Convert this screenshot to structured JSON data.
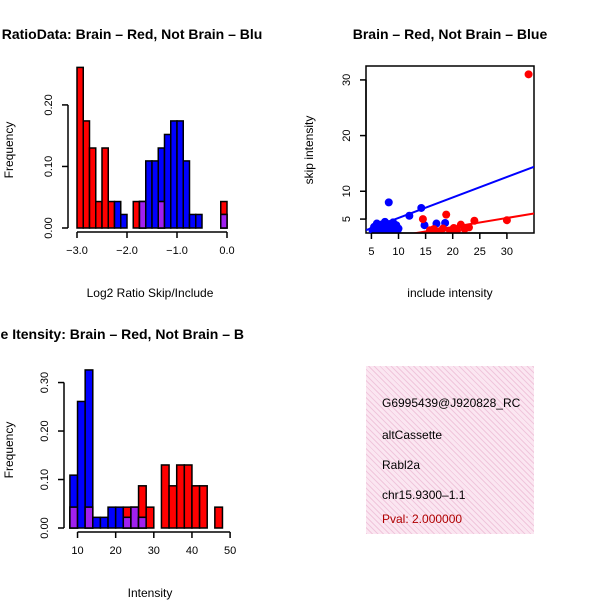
{
  "colors": {
    "brain": "#ff0000",
    "not_brain": "#0000ff",
    "overlap": "#a020f0",
    "pval": "#b00000"
  },
  "chart_data": [
    {
      "type": "bar",
      "kind": "overlaid-histogram",
      "title": "RatioData: Brain – Red, Not Brain – Blu",
      "xlabel": "Log2 Ratio Skip/Include",
      "ylabel": "Frequency",
      "xlim": [
        -3.1,
        0.1
      ],
      "ylim": [
        0,
        0.26
      ],
      "xticks": [
        -3.0,
        -2.0,
        -1.0,
        0.0
      ],
      "xtick_labels": [
        "−3.0",
        "−2.0",
        "−1.0",
        "0.0"
      ],
      "yticks": [
        0.0,
        0.1,
        0.2
      ],
      "ytick_labels": [
        "0.00",
        "0.10",
        "0.20"
      ],
      "bin_edges": [
        -3.0,
        -2.875,
        -2.75,
        -2.625,
        -2.5,
        -2.375,
        -2.25,
        -2.125,
        -2.0,
        -1.875,
        -1.75,
        -1.625,
        -1.5,
        -1.375,
        -1.25,
        -1.125,
        -1.0,
        -0.875,
        -0.75,
        -0.625,
        -0.5,
        -0.375,
        -0.25,
        -0.125,
        0.0
      ],
      "series": [
        {
          "name": "Brain",
          "color": "red",
          "values": [
            0.261,
            0.174,
            0.13,
            0.043,
            0.13,
            0.043,
            0.0,
            0.0,
            0.0,
            0.043,
            0.043,
            0.0,
            0.0,
            0.043,
            0.0,
            0.0,
            0.0,
            0.0,
            0.0,
            0.0,
            0.0,
            0.0,
            0.0,
            0.043
          ]
        },
        {
          "name": "Not Brain",
          "color": "blue",
          "values": [
            0.0,
            0.0,
            0.0,
            0.0,
            0.0,
            0.0,
            0.043,
            0.022,
            0.0,
            0.0,
            0.043,
            0.109,
            0.109,
            0.13,
            0.152,
            0.174,
            0.174,
            0.109,
            0.022,
            0.022,
            0.0,
            0.0,
            0.0,
            0.022
          ]
        }
      ]
    },
    {
      "type": "scatter",
      "title": "Brain – Red, Not Brain – Blue",
      "xlabel": "include intensity",
      "ylabel": "skip intensity",
      "xlim": [
        4,
        35
      ],
      "ylim": [
        2.5,
        32.5
      ],
      "xticks": [
        5,
        10,
        15,
        20,
        25,
        30
      ],
      "xtick_labels": [
        "5",
        "10",
        "15",
        "20",
        "25",
        "30"
      ],
      "yticks": [
        5,
        10,
        20,
        30
      ],
      "ytick_labels": [
        "5",
        "10",
        "20",
        "30"
      ],
      "series": [
        {
          "name": "Not Brain",
          "color": "blue",
          "points": [
            [
              5.2,
              3.0
            ],
            [
              5.5,
              3.6
            ],
            [
              5.8,
              3.2
            ],
            [
              6.0,
              4.2
            ],
            [
              6.2,
              3.5
            ],
            [
              6.5,
              3.0
            ],
            [
              6.8,
              4.0
            ],
            [
              7.0,
              3.8
            ],
            [
              7.2,
              3.3
            ],
            [
              7.5,
              4.5
            ],
            [
              7.8,
              3.6
            ],
            [
              8.0,
              3.1
            ],
            [
              8.3,
              4.1
            ],
            [
              8.5,
              3.7
            ],
            [
              8.8,
              3.2
            ],
            [
              9.0,
              4.4
            ],
            [
              9.3,
              3.5
            ],
            [
              9.6,
              3.9
            ],
            [
              10.0,
              3.3
            ],
            [
              8.2,
              8.0
            ],
            [
              12.0,
              5.6
            ],
            [
              14.2,
              7.0
            ],
            [
              14.8,
              3.9
            ],
            [
              17.0,
              4.2
            ],
            [
              18.6,
              4.3
            ],
            [
              6.0,
              2.8
            ],
            [
              7.1,
              2.7
            ],
            [
              9.8,
              2.9
            ]
          ]
        },
        {
          "name": "Brain",
          "color": "red",
          "points": [
            [
              14.5,
              5.0
            ],
            [
              15.8,
              3.0
            ],
            [
              16.5,
              3.2
            ],
            [
              17.5,
              2.8
            ],
            [
              18.2,
              3.3
            ],
            [
              18.8,
              5.8
            ],
            [
              19.5,
              2.9
            ],
            [
              20.2,
              3.4
            ],
            [
              20.8,
              3.0
            ],
            [
              21.5,
              4.0
            ],
            [
              22.2,
              3.2
            ],
            [
              23.0,
              3.5
            ],
            [
              24.0,
              4.7
            ],
            [
              30.0,
              4.8
            ],
            [
              34.0,
              31.0
            ]
          ]
        }
      ],
      "fit_lines": [
        {
          "name": "Not Brain fit",
          "color": "blue",
          "from": [
            4,
            3.0
          ],
          "to": [
            35,
            14.4
          ]
        },
        {
          "name": "Brain fit",
          "color": "red",
          "from": [
            4,
            1.0
          ],
          "to": [
            35,
            6.0
          ]
        }
      ]
    },
    {
      "type": "bar",
      "kind": "overlaid-histogram",
      "title": "ne Itensity: Brain – Red, Not Brain – B",
      "xlabel": "Intensity",
      "ylabel": "Frequency",
      "xlim": [
        7.5,
        50.5
      ],
      "ylim": [
        0,
        0.33
      ],
      "xticks": [
        10,
        20,
        30,
        40,
        50
      ],
      "xtick_labels": [
        "10",
        "20",
        "30",
        "40",
        "50"
      ],
      "yticks": [
        0.0,
        0.1,
        0.2,
        0.3
      ],
      "ytick_labels": [
        "0.00",
        "0.10",
        "0.20",
        "0.30"
      ],
      "bin_edges": [
        8,
        10,
        12,
        14,
        16,
        18,
        20,
        22,
        24,
        26,
        28,
        30,
        32,
        34,
        36,
        38,
        40,
        42,
        44,
        46,
        48
      ],
      "series": [
        {
          "name": "Brain",
          "color": "red",
          "values": [
            0.043,
            0.0,
            0.043,
            0.0,
            0.0,
            0.0,
            0.0,
            0.043,
            0.043,
            0.087,
            0.043,
            0.0,
            0.13,
            0.087,
            0.13,
            0.13,
            0.087,
            0.087,
            0.0,
            0.043
          ]
        },
        {
          "name": "Not Brain",
          "color": "blue",
          "values": [
            0.109,
            0.261,
            0.326,
            0.022,
            0.022,
            0.043,
            0.043,
            0.022,
            0.043,
            0.022,
            0.0,
            0.0,
            0.0,
            0.0,
            0.0,
            0.0,
            0.0,
            0.0,
            0.0,
            0.0
          ]
        }
      ]
    }
  ],
  "info": {
    "event_id": "G6995439@J920828_RC",
    "event_type": "altCassette",
    "gene": "Rabl2a",
    "location": "chr15.9300–1.1",
    "pval": "Pval: 2.000000"
  }
}
